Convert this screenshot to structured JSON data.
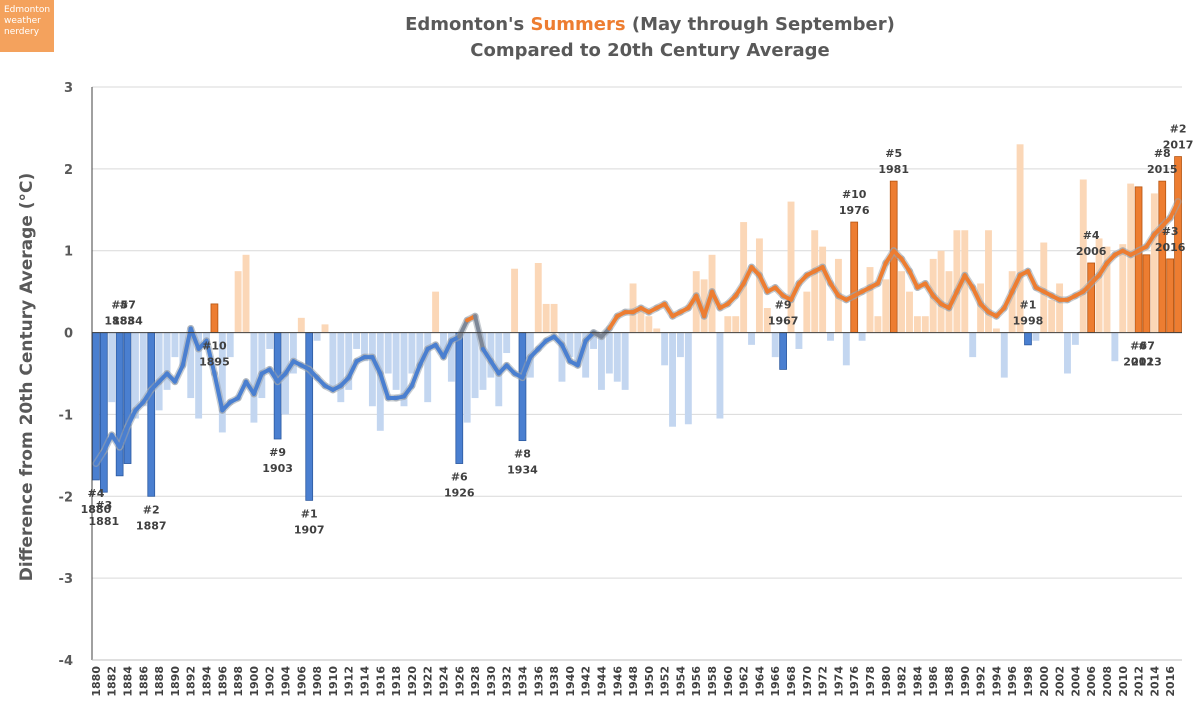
{
  "badge": {
    "line1": "Edmonton",
    "line2": "weather",
    "line3": "nerdery"
  },
  "title": {
    "prefix": "Edmonton's ",
    "highlight": "Summers",
    "suffix": " (May through September)",
    "line2": "Compared to 20th Century Average"
  },
  "colors": {
    "warm": "#ed7d31",
    "cold": "#4a7fd0",
    "warm_light": "#fbd7b7",
    "cold_light": "#c3d6f0",
    "grid": "#d9d9d9",
    "axis": "#404040"
  },
  "chart_data": {
    "type": "bar",
    "title": "Edmonton's Summers (May through September) Compared to 20th Century Average",
    "xlabel": "",
    "ylabel": "Difference from 20th Century Average (°C)",
    "ylim": [
      -4,
      3
    ],
    "yticks": [
      "3",
      "2",
      "1",
      "0",
      "-1",
      "-2",
      "-3",
      "-4"
    ],
    "years": [
      1880,
      2017
    ],
    "xtick_labels": [
      "1880",
      "1882",
      "1884",
      "1886",
      "1888",
      "1890",
      "1892",
      "1894",
      "1896",
      "1898",
      "1900",
      "1902",
      "1904",
      "1906",
      "1908",
      "1910",
      "1912",
      "1914",
      "1916",
      "1918",
      "1920",
      "1922",
      "1924",
      "1926",
      "1928",
      "1930",
      "1932",
      "1934",
      "1936",
      "1938",
      "1940",
      "1942",
      "1944",
      "1946",
      "1948",
      "1950",
      "1952",
      "1954",
      "1956",
      "1958",
      "1960",
      "1962",
      "1964",
      "1966",
      "1968",
      "1970",
      "1972",
      "1974",
      "1976",
      "1978",
      "1980",
      "1982",
      "1984",
      "1986",
      "1988",
      "1990",
      "1992",
      "1994",
      "1996",
      "1998",
      "2000",
      "2002",
      "2004",
      "2006",
      "2008",
      "2010",
      "2012",
      "2014",
      "2016"
    ],
    "series": [
      {
        "name": "Annual anomaly",
        "values": [
          -1.8,
          -1.95,
          -0.85,
          -1.75,
          -1.6,
          -1.05,
          -0.9,
          -2.0,
          -0.95,
          -0.7,
          -0.3,
          -0.4,
          -0.8,
          -1.05,
          -0.2,
          0.35,
          -1.22,
          -0.3,
          0.75,
          0.95,
          -1.1,
          -0.8,
          -0.2,
          -1.3,
          -1.0,
          -0.5,
          0.18,
          -2.05,
          -0.1,
          0.1,
          -0.7,
          -0.85,
          -0.7,
          -0.2,
          -0.35,
          -0.9,
          -1.2,
          -0.5,
          -0.7,
          -0.9,
          -0.5,
          -0.4,
          -0.85,
          0.5,
          -0.3,
          -0.6,
          -1.6,
          -1.1,
          -0.8,
          -0.7,
          -0.55,
          -0.9,
          -0.25,
          0.78,
          -1.32,
          -0.55,
          0.85,
          0.35,
          0.35,
          -0.6,
          -0.3,
          -0.4,
          -0.55,
          -0.2,
          -0.7,
          -0.5,
          -0.6,
          -0.7,
          0.6,
          0.3,
          0.2,
          0.05,
          -0.4,
          -1.15,
          -0.3,
          -1.12,
          0.75,
          0.65,
          0.95,
          -1.05,
          0.2,
          0.2,
          1.35,
          -0.15,
          1.15,
          0.3,
          -0.3,
          -0.45,
          1.6,
          -0.2,
          0.5,
          1.25,
          1.05,
          -0.1,
          0.9,
          -0.4,
          1.35,
          -0.1,
          0.8,
          0.2,
          0.65,
          1.85,
          0.75,
          0.5,
          0.2,
          0.2,
          0.9,
          1.0,
          0.75,
          1.25,
          1.25,
          -0.3,
          0.6,
          1.25,
          0.05,
          -0.55,
          0.75,
          2.3,
          -0.15,
          -0.1,
          1.1,
          0.4,
          0.6,
          -0.5,
          -0.15,
          1.87,
          0.85,
          1.15,
          1.05,
          -0.35,
          1.08,
          1.82,
          1.78,
          0.95,
          1.7,
          1.85,
          0.9,
          2.15
        ]
      },
      {
        "name": "Trend",
        "values": [
          -1.6,
          -1.45,
          -1.25,
          -1.4,
          -1.15,
          -0.95,
          -0.85,
          -0.7,
          -0.6,
          -0.5,
          -0.6,
          -0.4,
          0.05,
          -0.2,
          -0.1,
          -0.5,
          -0.95,
          -0.85,
          -0.8,
          -0.6,
          -0.75,
          -0.5,
          -0.45,
          -0.6,
          -0.5,
          -0.35,
          -0.4,
          -0.45,
          -0.55,
          -0.65,
          -0.7,
          -0.65,
          -0.55,
          -0.35,
          -0.3,
          -0.3,
          -0.5,
          -0.8,
          -0.8,
          -0.78,
          -0.65,
          -0.4,
          -0.2,
          -0.15,
          -0.3,
          -0.1,
          -0.05,
          0.15,
          0.2,
          -0.2,
          -0.35,
          -0.5,
          -0.4,
          -0.5,
          -0.55,
          -0.3,
          -0.2,
          -0.1,
          -0.05,
          -0.15,
          -0.35,
          -0.4,
          -0.1,
          0.0,
          -0.05,
          0.05,
          0.2,
          0.25,
          0.25,
          0.3,
          0.25,
          0.3,
          0.35,
          0.2,
          0.25,
          0.3,
          0.45,
          0.2,
          0.5,
          0.3,
          0.35,
          0.45,
          0.6,
          0.8,
          0.7,
          0.5,
          0.55,
          0.45,
          0.4,
          0.6,
          0.7,
          0.75,
          0.8,
          0.6,
          0.45,
          0.4,
          0.45,
          0.5,
          0.55,
          0.6,
          0.85,
          1.0,
          0.9,
          0.75,
          0.55,
          0.6,
          0.45,
          0.35,
          0.3,
          0.5,
          0.7,
          0.55,
          0.35,
          0.25,
          0.2,
          0.3,
          0.5,
          0.7,
          0.75,
          0.55,
          0.5,
          0.45,
          0.4,
          0.4,
          0.45,
          0.5,
          0.6,
          0.7,
          0.85,
          0.95,
          1.0,
          0.95,
          1.0,
          1.05,
          1.2,
          1.3,
          1.4,
          1.6
        ]
      }
    ],
    "annotations": [
      {
        "rank": "#4",
        "year": "1880",
        "position": "below"
      },
      {
        "rank": "#5",
        "year": "1883",
        "position": "above"
      },
      {
        "rank": "#3",
        "year": "1881",
        "position": "below"
      },
      {
        "rank": "#7",
        "year": "1884",
        "position": "above"
      },
      {
        "rank": "#2",
        "year": "1887",
        "position": "below"
      },
      {
        "rank": "#10",
        "year": "1895",
        "position": "below"
      },
      {
        "rank": "#9",
        "year": "1903",
        "position": "below"
      },
      {
        "rank": "#1",
        "year": "1907",
        "position": "below"
      },
      {
        "rank": "#6",
        "year": "1926",
        "position": "below"
      },
      {
        "rank": "#8",
        "year": "1934",
        "position": "below"
      },
      {
        "rank": "#9",
        "year": "1967",
        "position": "above"
      },
      {
        "rank": "#10",
        "year": "1976",
        "position": "above"
      },
      {
        "rank": "#5",
        "year": "1981",
        "position": "above"
      },
      {
        "rank": "#1",
        "year": "1998",
        "position": "above"
      },
      {
        "rank": "#4",
        "year": "2006",
        "position": "above"
      },
      {
        "rank": "#6",
        "year": "2012",
        "position": "below"
      },
      {
        "rank": "#8",
        "year": "2015",
        "position": "above"
      },
      {
        "rank": "#3",
        "year": "2016",
        "position": "above"
      },
      {
        "rank": "#7",
        "year": "2013",
        "position": "below"
      },
      {
        "rank": "#2",
        "year": "2017",
        "position": "above"
      }
    ]
  }
}
